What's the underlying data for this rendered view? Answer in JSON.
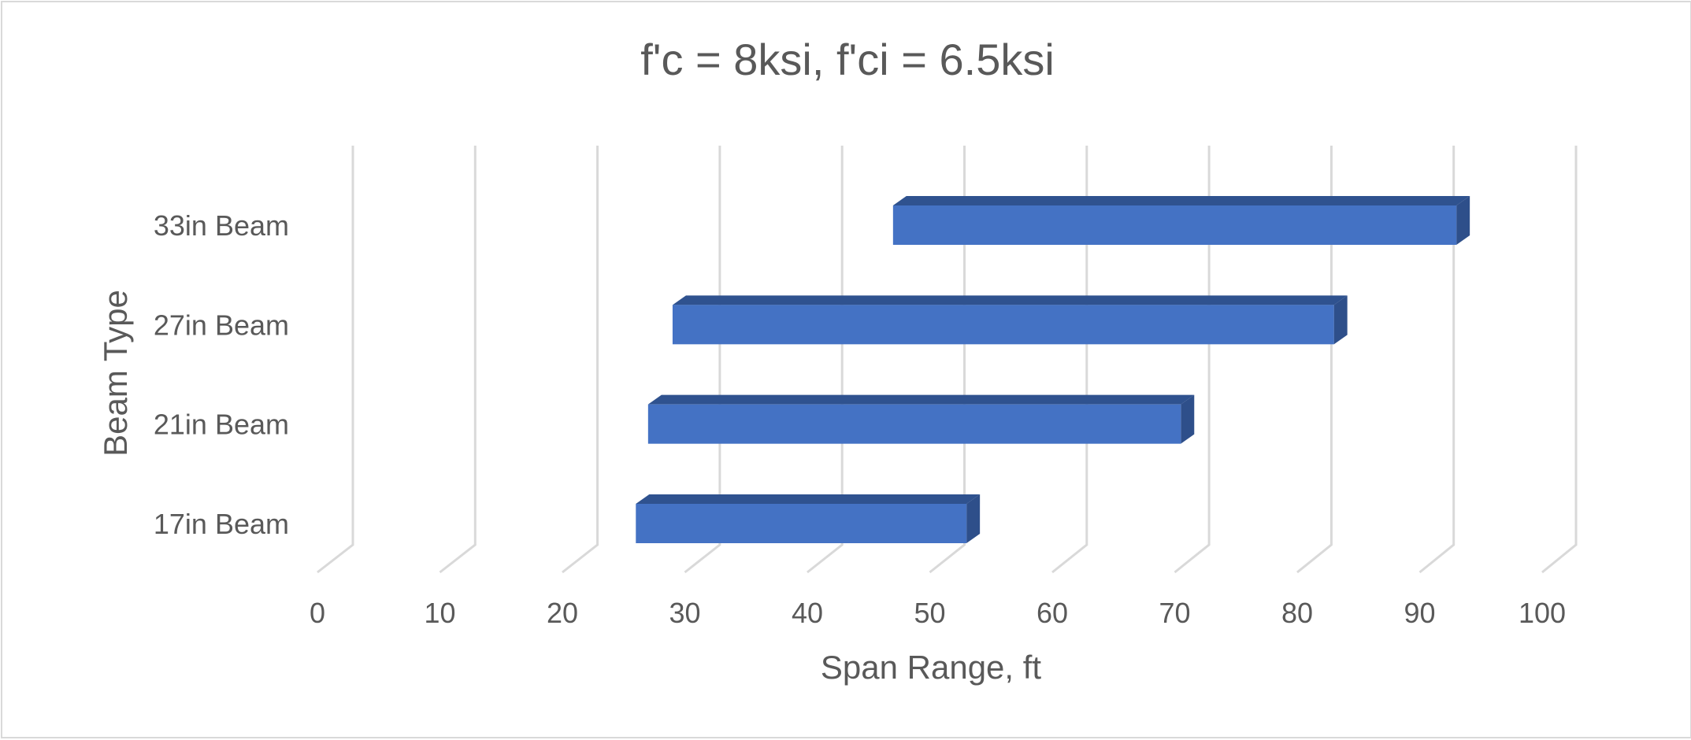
{
  "chart_data": {
    "type": "bar",
    "orientation": "horizontal-floating-3d",
    "title": "f'c = 8ksi, f'ci = 6.5ksi",
    "xlabel": "Span Range, ft",
    "ylabel": "Beam Type",
    "xlim": [
      0,
      100
    ],
    "x_ticks": [
      "0",
      "10",
      "20",
      "30",
      "40",
      "50",
      "60",
      "70",
      "80",
      "90",
      "100"
    ],
    "grid": "vertical",
    "legend": "none",
    "categories": [
      "17in Beam",
      "21in Beam",
      "27in Beam",
      "33in Beam"
    ],
    "ranges": [
      {
        "category": "17in Beam",
        "start": 26,
        "end": 53
      },
      {
        "category": "21in Beam",
        "start": 27,
        "end": 70.5
      },
      {
        "category": "27in Beam",
        "start": 29,
        "end": 83
      },
      {
        "category": "33in Beam",
        "start": 47,
        "end": 93
      }
    ],
    "colors": {
      "bar_front": "#4472c4",
      "bar_top": "#2f528f",
      "bar_side": "#2e4f8a",
      "gridline": "#d9d9d9",
      "text": "#595959"
    }
  }
}
